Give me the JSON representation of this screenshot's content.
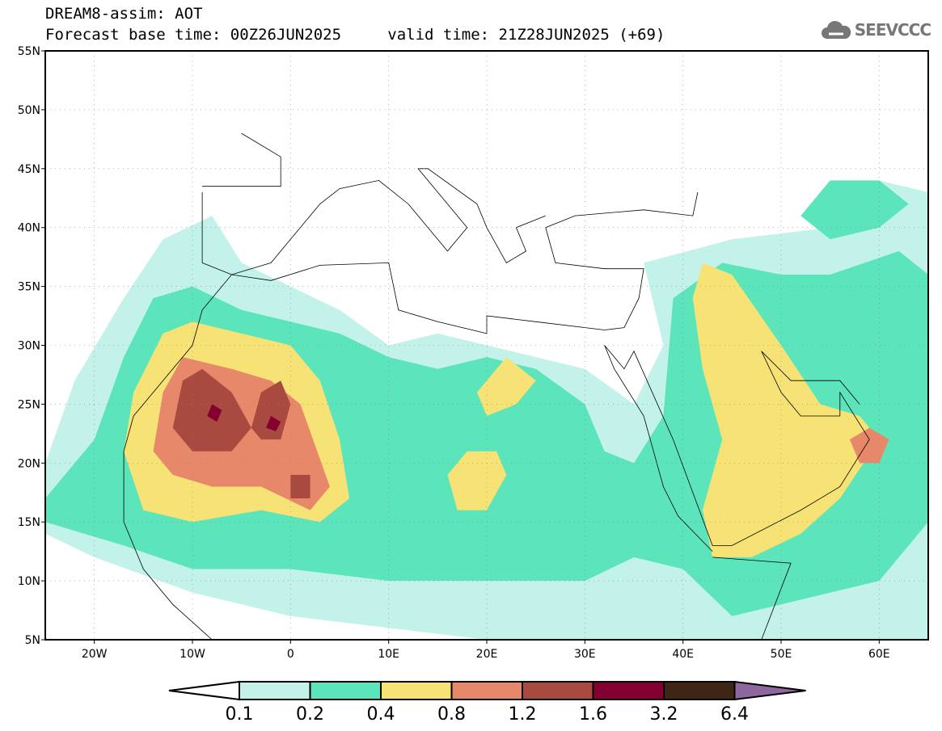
{
  "header": {
    "title": "DREAM8-assim: AOT",
    "base_time": "Forecast base time: 00Z26JUN2025",
    "valid_time": "valid time: 21Z28JUN2025 (+69)"
  },
  "logo": {
    "text": "SEEVCCC",
    "icon": "cloud-icon"
  },
  "map": {
    "lon_range": [
      -25,
      65
    ],
    "lat_range": [
      5,
      55
    ],
    "lat_ticks": [
      {
        "v": 55,
        "label": "55N"
      },
      {
        "v": 50,
        "label": "50N"
      },
      {
        "v": 45,
        "label": "45N"
      },
      {
        "v": 40,
        "label": "40N"
      },
      {
        "v": 35,
        "label": "35N"
      },
      {
        "v": 30,
        "label": "30N"
      },
      {
        "v": 25,
        "label": "25N"
      },
      {
        "v": 20,
        "label": "20N"
      },
      {
        "v": 15,
        "label": "15N"
      },
      {
        "v": 10,
        "label": "10N"
      },
      {
        "v": 5,
        "label": "5N"
      }
    ],
    "lon_ticks": [
      {
        "v": -20,
        "label": "20W"
      },
      {
        "v": -10,
        "label": "10W"
      },
      {
        "v": 0,
        "label": "0"
      },
      {
        "v": 10,
        "label": "10E"
      },
      {
        "v": 20,
        "label": "20E"
      },
      {
        "v": 30,
        "label": "30E"
      },
      {
        "v": 40,
        "label": "40E"
      },
      {
        "v": 50,
        "label": "50E"
      },
      {
        "v": 60,
        "label": "60E"
      }
    ]
  },
  "colorbar": {
    "labels": [
      "0.1",
      "0.2",
      "0.4",
      "0.8",
      "1.2",
      "1.6",
      "3.2",
      "6.4"
    ],
    "colors": [
      "#ffffff",
      "#c3f2ea",
      "#5ce4bb",
      "#f7e375",
      "#e8886a",
      "#a94a40",
      "#830030",
      "#3e2514",
      "#8f679f"
    ]
  }
}
